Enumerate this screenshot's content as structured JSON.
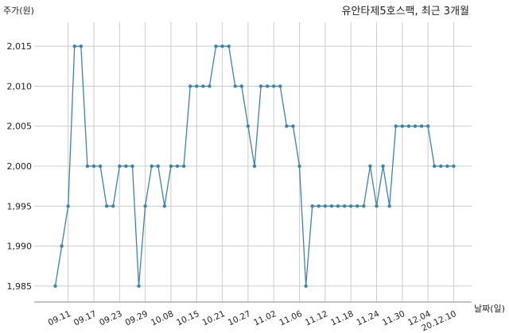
{
  "chart_data": {
    "type": "line",
    "title": "유안타제5호스팩, 최근 3개월",
    "ylabel": "주가(원)",
    "xlabel": "날짜(일)",
    "ylim": [
      1983,
      2018
    ],
    "y_ticks": [
      1985,
      1990,
      1995,
      2000,
      2005,
      2010,
      2015
    ],
    "y_tick_labels": [
      "1,985",
      "1,990",
      "1,995",
      "2,000",
      "2,005",
      "2,010",
      "2,015"
    ],
    "x_tick_labels": [
      "09.11",
      "09.17",
      "09.23",
      "09.29",
      "10.08",
      "10.15",
      "10.21",
      "10.27",
      "11.02",
      "11.06",
      "11.12",
      "11.18",
      "11.24",
      "11.30",
      "12.04",
      "20.12.10"
    ],
    "x_tick_indices": [
      2,
      6,
      10,
      14,
      18,
      22,
      26,
      30,
      34,
      38,
      42,
      46,
      50,
      54,
      58,
      62
    ],
    "grid": true,
    "line_color": "#3b84ab",
    "series": [
      {
        "values": [
          1985,
          1990,
          1995,
          2015,
          2015,
          2000,
          2000,
          2000,
          1995,
          1995,
          2000,
          2000,
          2000,
          1985,
          1995,
          2000,
          2000,
          1995,
          2000,
          2000,
          2000,
          2010,
          2010,
          2010,
          2010,
          2015,
          2015,
          2015,
          2010,
          2010,
          2005,
          2000,
          2010,
          2010,
          2010,
          2010,
          2005,
          2005,
          2000,
          1985,
          1995,
          1995,
          1995,
          1995,
          1995,
          1995,
          1995,
          1995,
          1995,
          2000,
          1995,
          2000,
          1995,
          2005,
          2005,
          2005,
          2005,
          2005,
          2005,
          2000,
          2000,
          2000,
          2000
        ]
      }
    ]
  }
}
